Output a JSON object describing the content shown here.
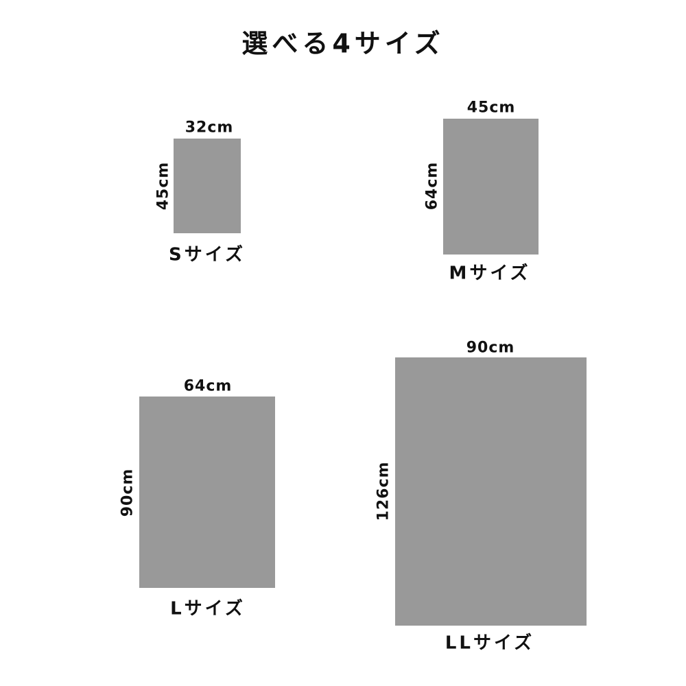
{
  "title": "選べる4サイズ",
  "rect_color": "#999999",
  "sizes": [
    {
      "label": "Sサイズ",
      "width": "32cm",
      "height": "45cm"
    },
    {
      "label": "Mサイズ",
      "width": "45cm",
      "height": "64cm"
    },
    {
      "label": "Lサイズ",
      "width": "64cm",
      "height": "90cm"
    },
    {
      "label": "LLサイズ",
      "width": "90cm",
      "height": "126cm"
    }
  ]
}
